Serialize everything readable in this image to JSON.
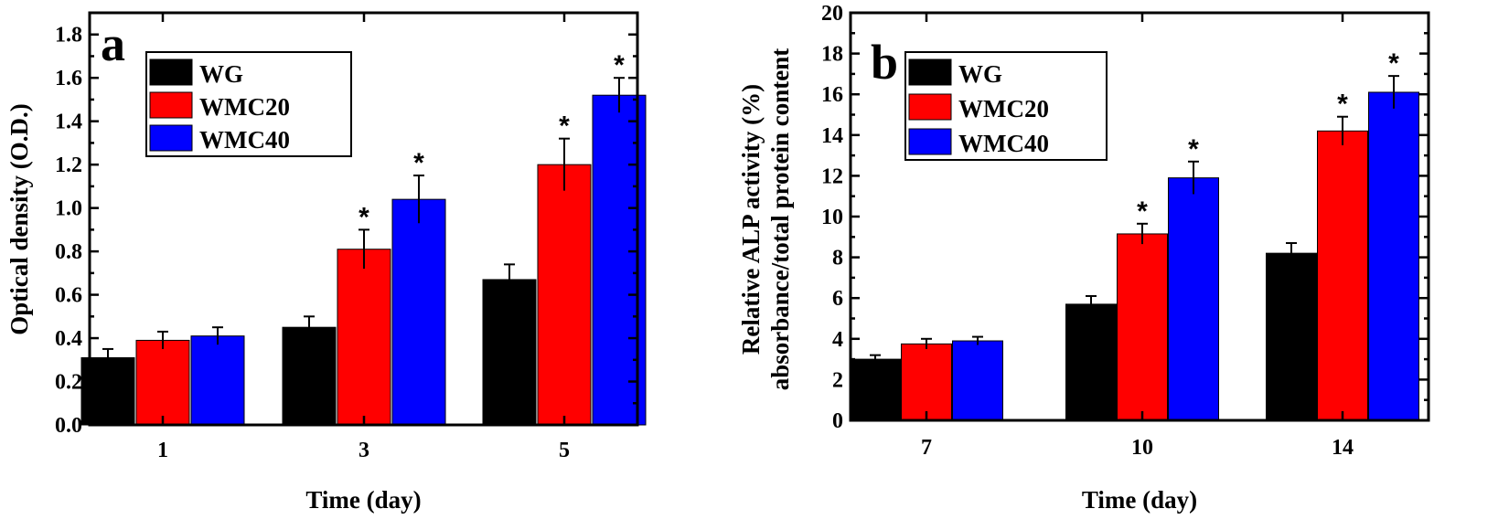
{
  "chart_data": [
    {
      "type": "bar",
      "panel_label": "a",
      "categories": [
        "1",
        "3",
        "5"
      ],
      "xlabel": "Time (day)",
      "ylabel": "Optical  density (O.D.)",
      "ylim": [
        0,
        1.9
      ],
      "yticks": [
        "0.0",
        "0.2",
        "0.4",
        "0.6",
        "0.8",
        "1.0",
        "1.2",
        "1.4",
        "1.6",
        "1.8"
      ],
      "legend_position": "top-left",
      "series": [
        {
          "name": "WG",
          "color": "#000000",
          "values": [
            0.31,
            0.45,
            0.67
          ],
          "errors": [
            0.04,
            0.05,
            0.07
          ],
          "significant": [
            false,
            false,
            false
          ]
        },
        {
          "name": "WMC20",
          "color": "#ff0000",
          "values": [
            0.39,
            0.81,
            1.2
          ],
          "errors": [
            0.04,
            0.09,
            0.12
          ],
          "significant": [
            false,
            true,
            true
          ]
        },
        {
          "name": "WMC40",
          "color": "#0000ff",
          "values": [
            0.41,
            1.04,
            1.52
          ],
          "errors": [
            0.04,
            0.11,
            0.08
          ],
          "significant": [
            false,
            true,
            true
          ]
        }
      ],
      "significance_marker": "*"
    },
    {
      "type": "bar",
      "panel_label": "b",
      "categories": [
        "7",
        "10",
        "14"
      ],
      "xlabel": "Time (day)",
      "ylabel_lines": [
        "Relative ALP activity (%)",
        "absorbance/total protein content"
      ],
      "ylim": [
        0,
        20
      ],
      "yticks": [
        "0",
        "2",
        "4",
        "6",
        "8",
        "10",
        "12",
        "14",
        "16",
        "18",
        "20"
      ],
      "legend_position": "top-left",
      "series": [
        {
          "name": "WG",
          "color": "#000000",
          "values": [
            3.0,
            5.7,
            8.2
          ],
          "errors": [
            0.2,
            0.4,
            0.5
          ],
          "significant": [
            false,
            false,
            false
          ]
        },
        {
          "name": "WMC20",
          "color": "#ff0000",
          "values": [
            3.75,
            9.15,
            14.2
          ],
          "errors": [
            0.25,
            0.5,
            0.7
          ],
          "significant": [
            false,
            true,
            true
          ]
        },
        {
          "name": "WMC40",
          "color": "#0000ff",
          "values": [
            3.9,
            11.9,
            16.1
          ],
          "errors": [
            0.2,
            0.8,
            0.8
          ],
          "significant": [
            false,
            true,
            true
          ]
        }
      ],
      "significance_marker": "*"
    }
  ]
}
